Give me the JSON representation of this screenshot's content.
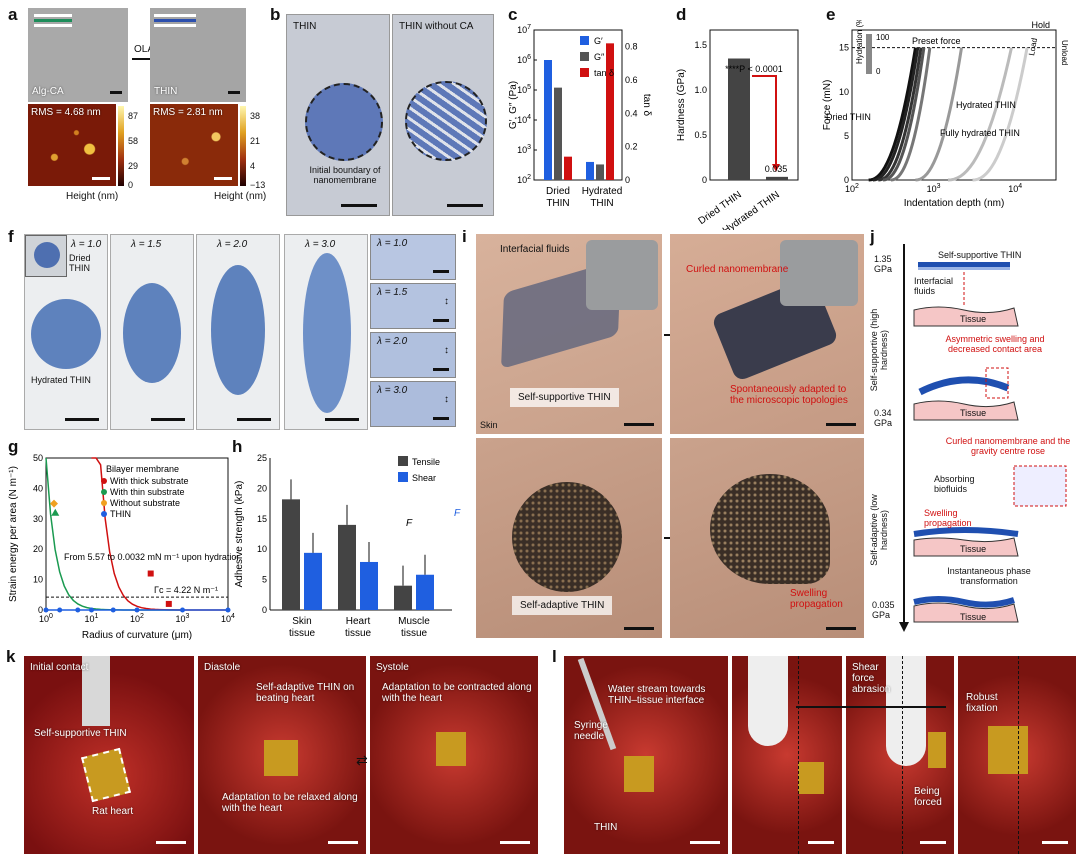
{
  "panels": {
    "a": {
      "letter": "a",
      "top_left": "Alg-CA",
      "top_right": "THIN",
      "arrow": "OLA",
      "rms_left": "RMS = 4.68 nm",
      "rms_right": "RMS = 2.81 nm",
      "cbar_left": [
        "87",
        "58",
        "29",
        "0"
      ],
      "cbar_right": [
        "38",
        "21",
        "4",
        "−13"
      ],
      "height_label": "Height (nm)"
    },
    "b": {
      "letter": "b",
      "left_title": "THIN",
      "right_title": "THIN without CA",
      "annotation": "Initial boundary of nanomembrane"
    },
    "c": {
      "letter": "c"
    },
    "d": {
      "letter": "d"
    },
    "e": {
      "letter": "e"
    },
    "f": {
      "letter": "f",
      "lambdas": [
        "λ = 1.0",
        "λ = 1.5",
        "λ = 2.0",
        "λ = 3.0"
      ],
      "small": [
        "λ = 1.0",
        "λ = 1.5",
        "λ = 2.0",
        "λ = 3.0"
      ],
      "dried": "Dried THIN",
      "hydrated": "Hydrated THIN"
    },
    "g": {
      "letter": "g"
    },
    "h": {
      "letter": "h"
    },
    "i": {
      "letter": "i",
      "interfacial": "Interfacial fluids",
      "curled": "Curled nanomembrane",
      "spont": "Spontaneously adapted to the microscopic topologies",
      "selfsup": "Self-supportive THIN",
      "skin": "Skin",
      "selfadapt": "Self-adaptive THIN",
      "swelling": "Swelling propagation"
    },
    "j": {
      "letter": "j",
      "top": "Self-supportive THIN",
      "interfacial": "Interfacial fluids",
      "tissue": "Tissue",
      "gpa1": "1.35 GPa",
      "gpa2": "0.34 GPa",
      "gpa3": "0.035 GPa",
      "side1": "Self-supportive (high hardness)",
      "side2": "Self-adaptive (low hardness)",
      "asym": "Asymmetric swelling and decreased contact area",
      "curled": "Curled nanomembrane and the gravity centre rose",
      "absorb": "Absorbing biofluids",
      "swell": "Swelling propagation",
      "inst": "Instantaneous phase transformation"
    },
    "k": {
      "letter": "k",
      "initial": "Initial contact",
      "diastole": "Diastole",
      "systole": "Systole",
      "selfsup": "Self-supportive THIN",
      "rat": "Rat heart",
      "selfad": "Self-adaptive THIN on beating heart",
      "relaxed": "Adaptation to be relaxed along with the heart",
      "contracted": "Adaptation to be contracted along with the heart"
    },
    "l": {
      "letter": "l",
      "water": "Water stream towards THIN–tissue interface",
      "syringe": "Syringe needle",
      "thin": "THIN",
      "shear": "Shear force abrasion",
      "forced": "Being forced",
      "robust": "Robust fixation"
    }
  },
  "chart_data": [
    {
      "id": "c",
      "type": "bar",
      "categories": [
        "Dried THIN",
        "Hydrated THIN"
      ],
      "series": [
        {
          "name": "G′",
          "color": "#1f5fe0",
          "values": [
            1000000,
            400
          ]
        },
        {
          "name": "G″",
          "color": "#555555",
          "values": [
            120000,
            330
          ]
        },
        {
          "name": "tan δ",
          "color": "#d01010",
          "values": [
            0.14,
            0.82
          ]
        }
      ],
      "ylabel_left": "G′, G″ (Pa)",
      "ylabel_right": "tan δ",
      "yticks_left": [
        "10^2",
        "10^3",
        "10^4",
        "10^5",
        "10^6",
        "10^7"
      ],
      "yticks_right": [
        "0",
        "0.2",
        "0.4",
        "0.6",
        "0.8"
      ],
      "xlabels": [
        "Dried",
        "THIN",
        "Hydrated",
        "THIN"
      ]
    },
    {
      "id": "d",
      "type": "bar",
      "categories": [
        "Dried THIN",
        "Hydrated THIN"
      ],
      "values": [
        1.35,
        0.035
      ],
      "ylabel": "Hardness (GPa)",
      "yticks": [
        "0",
        "0.5",
        "1.0",
        "1.5"
      ],
      "sig": "****P < 0.0001",
      "label_small": "0.035"
    },
    {
      "id": "e",
      "type": "line",
      "xlabel": "Indentation depth (nm)",
      "ylabel": "Force (mN)",
      "yticks": [
        "0",
        "5",
        "10",
        "15"
      ],
      "xticks": [
        "10^2",
        "10^3",
        "10^4"
      ],
      "legend_title": "Hydration (%)",
      "legend_max": "100",
      "legend_min": "0",
      "labels": {
        "preset": "Preset force",
        "hold": "Hold",
        "load": "Load",
        "unload": "Unload",
        "dried": "Dried THIN",
        "hydrated": "Hydrated THIN",
        "fully": "Fully hydrated THIN"
      }
    },
    {
      "id": "g",
      "type": "scatter",
      "xlabel": "Radius of curvature (μm)",
      "ylabel": "Strain energy per area (N m⁻¹)",
      "yticks": [
        "0",
        "10",
        "20",
        "30",
        "40",
        "50"
      ],
      "xticks": [
        "10^0",
        "10^1",
        "10^2",
        "10^3",
        "10^4"
      ],
      "legend_title": "Bilayer membrane",
      "series": [
        {
          "name": "With thick substrate",
          "color": "#d01010",
          "marker": "square"
        },
        {
          "name": "With thin substrate",
          "color": "#1a9a50",
          "marker": "triangle"
        },
        {
          "name": "Without substrate",
          "color": "#f0a020",
          "marker": "diamond"
        },
        {
          "name": "THIN",
          "color": "#1f5fe0",
          "marker": "circle"
        }
      ],
      "annotation": "From 5.57 to 0.0032 mN m⁻¹ upon hydration",
      "gamma": "Γc = 4.22 N m⁻¹"
    },
    {
      "id": "h",
      "type": "bar",
      "categories": [
        "Skin tissue",
        "Heart tissue",
        "Muscle tissue"
      ],
      "series": [
        {
          "name": "Tensile",
          "color": "#444444",
          "values": [
            18.2,
            14.0,
            4.0
          ]
        },
        {
          "name": "Shear",
          "color": "#1f5fe0",
          "values": [
            9.4,
            7.9,
            5.8
          ]
        }
      ],
      "ylabel": "Adhesive strength (kPa)",
      "yticks": [
        "0",
        "5",
        "10",
        "15",
        "20",
        "25"
      ],
      "ymax": 25,
      "force": "F"
    }
  ]
}
